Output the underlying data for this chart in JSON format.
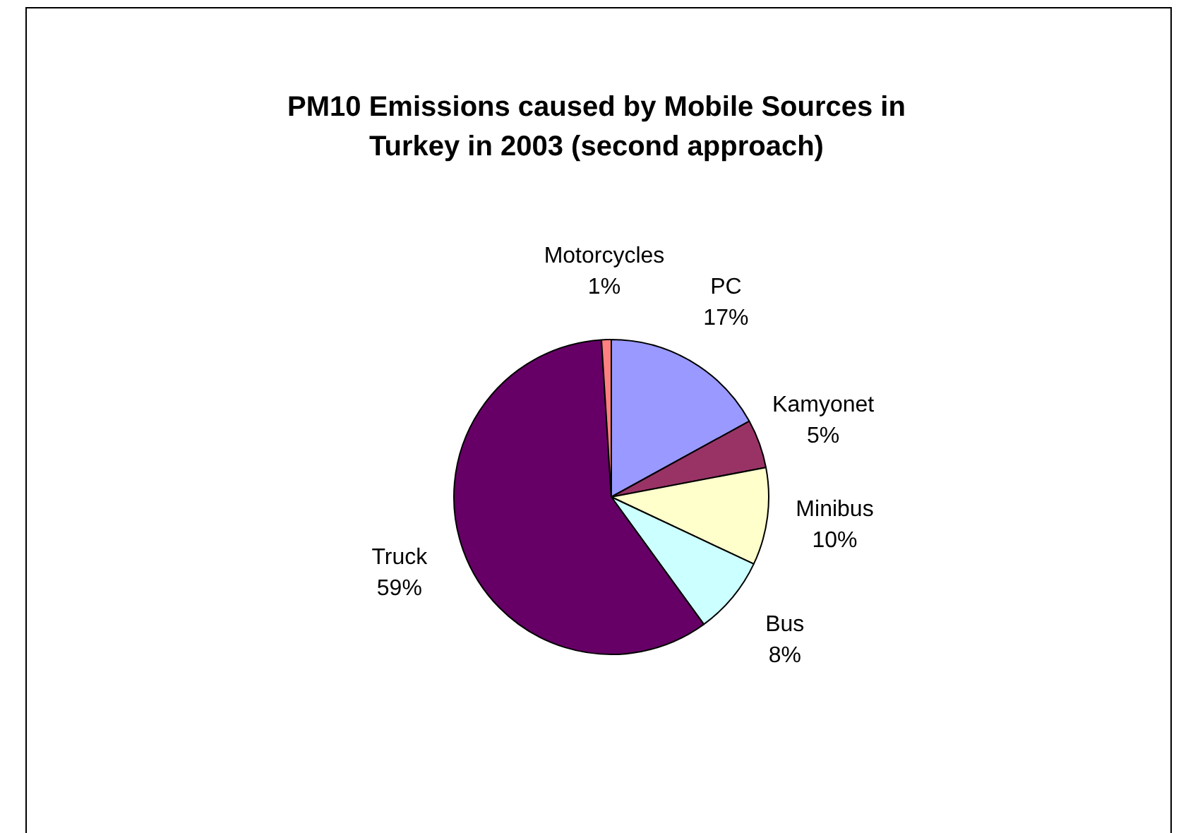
{
  "chart_data": {
    "type": "pie",
    "title": "PM10 Emissions caused by Mobile Sources in Turkey in 2003 (second approach)",
    "categories": [
      "PC",
      "Kamyonet",
      "Minibus",
      "Bus",
      "Truck",
      "Motorcycles"
    ],
    "values": [
      17,
      5,
      10,
      8,
      59,
      1
    ],
    "colors": [
      "#9999ff",
      "#993366",
      "#ffffcc",
      "#ccffff",
      "#660066",
      "#ff8080"
    ],
    "value_labels": [
      "17%",
      "5%",
      "10%",
      "8%",
      "59%",
      "1%"
    ],
    "legend": false
  }
}
